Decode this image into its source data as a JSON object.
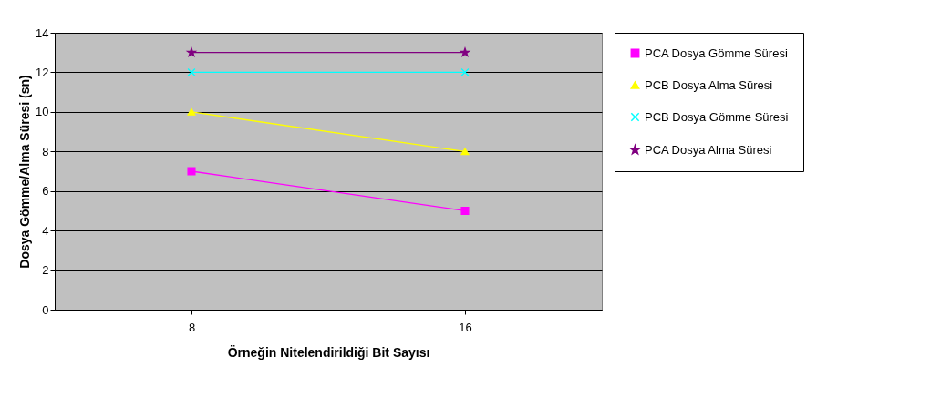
{
  "chart_data": {
    "type": "line",
    "xlabel": "Örneğin Nitelendirildiği Bit Sayısı",
    "ylabel": "Dosya Gömme/Alma Süresi (sn)",
    "categories": [
      "8",
      "16"
    ],
    "ylim": [
      0,
      14
    ],
    "yticks": [
      0,
      2,
      4,
      6,
      8,
      10,
      12,
      14
    ],
    "grid": "y",
    "legend": "right",
    "series": [
      {
        "name": "PCA Dosya Gömme Süresi",
        "color": "#ff00ff",
        "marker": "square",
        "values": [
          7,
          5
        ]
      },
      {
        "name": "PCB Dosya Alma Süresi",
        "color": "#ffff00",
        "marker": "triangle",
        "values": [
          10,
          8
        ]
      },
      {
        "name": "PCB Dosya Gömme Süresi",
        "color": "#00ffff",
        "marker": "cross",
        "values": [
          12,
          12
        ]
      },
      {
        "name": "PCA Dosya Alma Süresi",
        "color": "#800080",
        "marker": "star",
        "values": [
          13,
          13
        ]
      }
    ]
  }
}
